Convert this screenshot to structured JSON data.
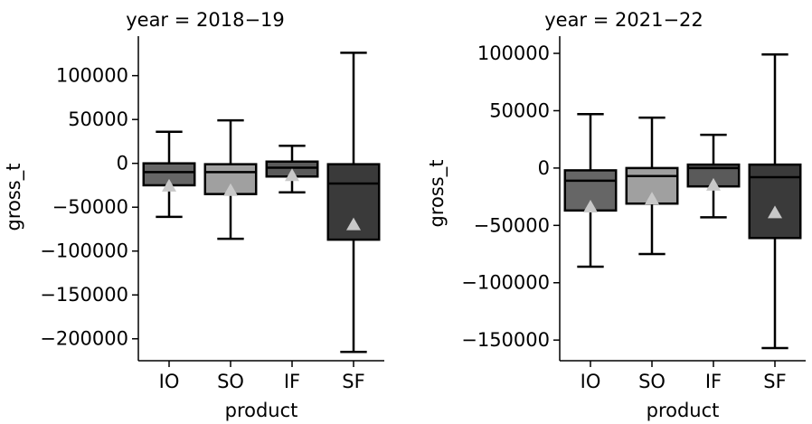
{
  "chart_data": [
    {
      "type": "box",
      "title": "year = 2018−19",
      "xlabel": "product",
      "ylabel": "gross_t",
      "ylim": [
        -225000,
        145000
      ],
      "yticks": [
        100000,
        50000,
        0,
        -50000,
        -100000,
        -150000,
        -200000
      ],
      "ytick_labels": [
        "100000",
        "50000",
        "0",
        "−50000",
        "−100000",
        "−150000",
        "−200000"
      ],
      "categories": [
        "IO",
        "SO",
        "IF",
        "SF"
      ],
      "colors": [
        "#666666",
        "#a0a0a0",
        "#5a5a5a",
        "#3a3a3a"
      ],
      "boxes": [
        {
          "whislo": -61000,
          "q1": -25000,
          "med": -10000,
          "q3": 0,
          "whishi": 36000,
          "mean": -26000
        },
        {
          "whislo": -86000,
          "q1": -35000,
          "med": -10000,
          "q3": -1000,
          "whishi": 49000,
          "mean": -31000
        },
        {
          "whislo": -33000,
          "q1": -15000,
          "med": -5000,
          "q3": 2000,
          "whishi": 20000,
          "mean": -14000
        },
        {
          "whislo": -215000,
          "q1": -87000,
          "med": -23000,
          "q3": -1000,
          "whishi": 126000,
          "mean": -70000
        }
      ]
    },
    {
      "type": "box",
      "title": "year = 2021−22",
      "xlabel": "product",
      "ylabel": "gross_t",
      "ylim": [
        -168000,
        115000
      ],
      "yticks": [
        100000,
        50000,
        0,
        -50000,
        -100000,
        -150000
      ],
      "ytick_labels": [
        "100000",
        "50000",
        "0",
        "−50000",
        "−100000",
        "−150000"
      ],
      "categories": [
        "IO",
        "SO",
        "IF",
        "SF"
      ],
      "colors": [
        "#666666",
        "#a0a0a0",
        "#5a5a5a",
        "#3a3a3a"
      ],
      "boxes": [
        {
          "whislo": -86000,
          "q1": -37000,
          "med": -11000,
          "q3": -2000,
          "whishi": 47000,
          "mean": -34000
        },
        {
          "whislo": -75000,
          "q1": -31000,
          "med": -7000,
          "q3": 0,
          "whishi": 44000,
          "mean": -27000
        },
        {
          "whislo": -43000,
          "q1": -16000,
          "med": 0,
          "q3": 3000,
          "whishi": 29000,
          "mean": -15000
        },
        {
          "whislo": -157000,
          "q1": -61000,
          "med": -8000,
          "q3": 3000,
          "whishi": 99000,
          "mean": -39000
        }
      ]
    }
  ]
}
